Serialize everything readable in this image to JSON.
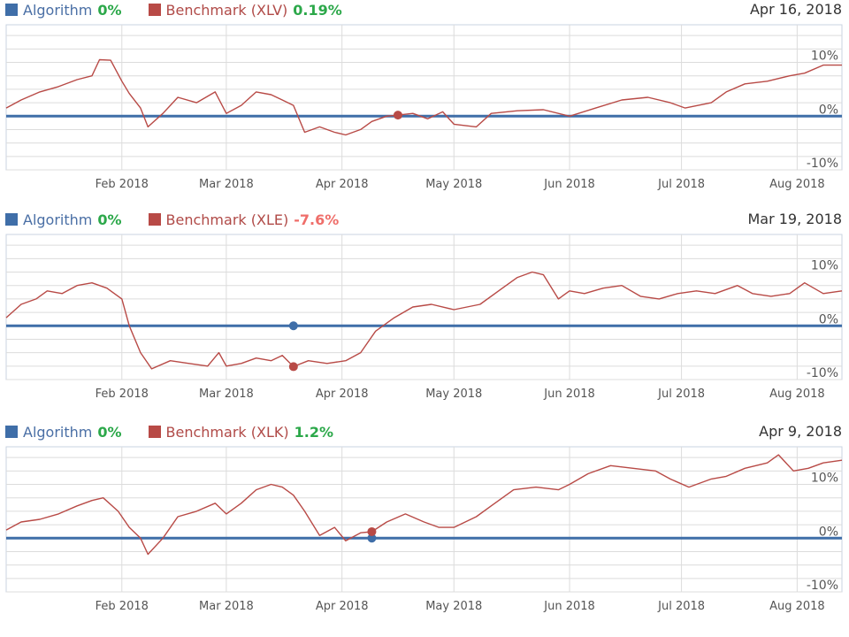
{
  "colors": {
    "algorithm": "#3f6ea8",
    "benchmark": "#b84a46",
    "positive": "#2ca84a",
    "negative": "#ef6e6a",
    "grid": "#dcdcdc",
    "axis_text": "#555555"
  },
  "panels": [
    {
      "algorithm_label": "Algorithm",
      "algorithm_pct": "0%",
      "algorithm_pct_sign": "positive",
      "benchmark_label": "Benchmark (XLV)",
      "benchmark_pct": "0.19%",
      "benchmark_pct_sign": "positive",
      "date": "Apr 16, 2018"
    },
    {
      "algorithm_label": "Algorithm",
      "algorithm_pct": "0%",
      "algorithm_pct_sign": "positive",
      "benchmark_label": "Benchmark (XLE)",
      "benchmark_pct": "-7.6%",
      "benchmark_pct_sign": "negative",
      "date": "Mar 19, 2018"
    },
    {
      "algorithm_label": "Algorithm",
      "algorithm_pct": "0%",
      "algorithm_pct_sign": "positive",
      "benchmark_label": "Benchmark (XLK)",
      "benchmark_pct": "1.2%",
      "benchmark_pct_sign": "positive",
      "date": "Apr 9, 2018"
    }
  ],
  "chart_data": [
    {
      "type": "line",
      "x_range": [
        "2018-01-01",
        "2018-08-13"
      ],
      "ylim": [
        -10,
        17
      ],
      "x_ticks": [
        {
          "date": "2018-02-01",
          "label": "Feb 2018"
        },
        {
          "date": "2018-03-01",
          "label": "Mar 2018"
        },
        {
          "date": "2018-04-01",
          "label": "Apr 2018"
        },
        {
          "date": "2018-05-01",
          "label": "May 2018"
        },
        {
          "date": "2018-06-01",
          "label": "Jun 2018"
        },
        {
          "date": "2018-07-01",
          "label": "Jul 2018"
        },
        {
          "date": "2018-08-01",
          "label": "Aug 2018"
        }
      ],
      "y_ticks": [
        {
          "value": 10,
          "label": "10%"
        },
        {
          "value": 0,
          "label": "0%"
        },
        {
          "value": -10,
          "label": "-10%"
        }
      ],
      "series": [
        {
          "name": "Algorithm",
          "values": [
            [
              "2018-01-01",
              0
            ],
            [
              "2018-08-13",
              0
            ]
          ]
        },
        {
          "name": "Benchmark (XLV)",
          "values": [
            [
              "2018-01-01",
              1.5
            ],
            [
              "2018-01-05",
              3
            ],
            [
              "2018-01-10",
              4.5
            ],
            [
              "2018-01-15",
              5.5
            ],
            [
              "2018-01-20",
              6.8
            ],
            [
              "2018-01-24",
              7.5
            ],
            [
              "2018-01-26",
              10.5
            ],
            [
              "2018-01-29",
              10.4
            ],
            [
              "2018-02-01",
              6.5
            ],
            [
              "2018-02-03",
              4.2
            ],
            [
              "2018-02-06",
              1.5
            ],
            [
              "2018-02-08",
              -2
            ],
            [
              "2018-02-12",
              0.5
            ],
            [
              "2018-02-16",
              3.5
            ],
            [
              "2018-02-21",
              2.5
            ],
            [
              "2018-02-26",
              4.5
            ],
            [
              "2018-03-01",
              0.5
            ],
            [
              "2018-03-05",
              2
            ],
            [
              "2018-03-09",
              4.5
            ],
            [
              "2018-03-13",
              4
            ],
            [
              "2018-03-16",
              3
            ],
            [
              "2018-03-19",
              2
            ],
            [
              "2018-03-22",
              -3
            ],
            [
              "2018-03-26",
              -2
            ],
            [
              "2018-03-30",
              -3
            ],
            [
              "2018-04-02",
              -3.5
            ],
            [
              "2018-04-06",
              -2.5
            ],
            [
              "2018-04-09",
              -1
            ],
            [
              "2018-04-13",
              0
            ],
            [
              "2018-04-16",
              0.19
            ],
            [
              "2018-04-20",
              0.5
            ],
            [
              "2018-04-24",
              -0.5
            ],
            [
              "2018-04-28",
              0.8
            ],
            [
              "2018-05-01",
              -1.5
            ],
            [
              "2018-05-07",
              -2
            ],
            [
              "2018-05-11",
              0.5
            ],
            [
              "2018-05-18",
              1
            ],
            [
              "2018-05-25",
              1.2
            ],
            [
              "2018-06-01",
              0
            ],
            [
              "2018-06-08",
              1.5
            ],
            [
              "2018-06-15",
              3
            ],
            [
              "2018-06-22",
              3.5
            ],
            [
              "2018-06-28",
              2.5
            ],
            [
              "2018-07-02",
              1.5
            ],
            [
              "2018-07-09",
              2.5
            ],
            [
              "2018-07-13",
              4.5
            ],
            [
              "2018-07-18",
              6
            ],
            [
              "2018-07-24",
              6.5
            ],
            [
              "2018-07-30",
              7.5
            ],
            [
              "2018-08-03",
              8
            ],
            [
              "2018-08-08",
              9.5
            ],
            [
              "2018-08-13",
              9.5
            ]
          ]
        }
      ],
      "markers": [
        {
          "series": "Benchmark (XLV)",
          "date": "2018-04-16",
          "value": 0.19
        }
      ]
    },
    {
      "type": "line",
      "x_range": [
        "2018-01-01",
        "2018-08-13"
      ],
      "ylim": [
        -10,
        17
      ],
      "x_ticks": [
        {
          "date": "2018-02-01",
          "label": "Feb 2018"
        },
        {
          "date": "2018-03-01",
          "label": "Mar 2018"
        },
        {
          "date": "2018-04-01",
          "label": "Apr 2018"
        },
        {
          "date": "2018-05-01",
          "label": "May 2018"
        },
        {
          "date": "2018-06-01",
          "label": "Jun 2018"
        },
        {
          "date": "2018-07-01",
          "label": "Jul 2018"
        },
        {
          "date": "2018-08-01",
          "label": "Aug 2018"
        }
      ],
      "y_ticks": [
        {
          "value": 10,
          "label": "10%"
        },
        {
          "value": 0,
          "label": "0%"
        },
        {
          "value": -10,
          "label": "-10%"
        }
      ],
      "series": [
        {
          "name": "Algorithm",
          "values": [
            [
              "2018-01-01",
              0
            ],
            [
              "2018-08-13",
              0
            ]
          ]
        },
        {
          "name": "Benchmark (XLE)",
          "values": [
            [
              "2018-01-01",
              1.5
            ],
            [
              "2018-01-05",
              4
            ],
            [
              "2018-01-09",
              5
            ],
            [
              "2018-01-12",
              6.5
            ],
            [
              "2018-01-16",
              6
            ],
            [
              "2018-01-20",
              7.5
            ],
            [
              "2018-01-24",
              8
            ],
            [
              "2018-01-28",
              7
            ],
            [
              "2018-02-01",
              5
            ],
            [
              "2018-02-03",
              0
            ],
            [
              "2018-02-06",
              -5
            ],
            [
              "2018-02-09",
              -8
            ],
            [
              "2018-02-14",
              -6.5
            ],
            [
              "2018-02-19",
              -7
            ],
            [
              "2018-02-24",
              -7.5
            ],
            [
              "2018-02-27",
              -5
            ],
            [
              "2018-03-01",
              -7.5
            ],
            [
              "2018-03-05",
              -7
            ],
            [
              "2018-03-09",
              -6
            ],
            [
              "2018-03-13",
              -6.5
            ],
            [
              "2018-03-16",
              -5.5
            ],
            [
              "2018-03-19",
              -7.6
            ],
            [
              "2018-03-23",
              -6.5
            ],
            [
              "2018-03-28",
              -7
            ],
            [
              "2018-04-02",
              -6.5
            ],
            [
              "2018-04-06",
              -5
            ],
            [
              "2018-04-10",
              -1
            ],
            [
              "2018-04-15",
              1.5
            ],
            [
              "2018-04-20",
              3.5
            ],
            [
              "2018-04-25",
              4
            ],
            [
              "2018-05-01",
              3
            ],
            [
              "2018-05-08",
              4
            ],
            [
              "2018-05-14",
              7
            ],
            [
              "2018-05-18",
              9
            ],
            [
              "2018-05-22",
              10
            ],
            [
              "2018-05-25",
              9.5
            ],
            [
              "2018-05-29",
              5
            ],
            [
              "2018-06-01",
              6.5
            ],
            [
              "2018-06-05",
              6
            ],
            [
              "2018-06-10",
              7
            ],
            [
              "2018-06-15",
              7.5
            ],
            [
              "2018-06-20",
              5.5
            ],
            [
              "2018-06-25",
              5
            ],
            [
              "2018-06-30",
              6
            ],
            [
              "2018-07-05",
              6.5
            ],
            [
              "2018-07-10",
              6
            ],
            [
              "2018-07-16",
              7.5
            ],
            [
              "2018-07-20",
              6
            ],
            [
              "2018-07-25",
              5.5
            ],
            [
              "2018-07-30",
              6
            ],
            [
              "2018-08-03",
              8
            ],
            [
              "2018-08-08",
              6
            ],
            [
              "2018-08-13",
              6.5
            ]
          ]
        }
      ],
      "markers": [
        {
          "series": "Algorithm",
          "date": "2018-03-19",
          "value": 0
        },
        {
          "series": "Benchmark (XLE)",
          "date": "2018-03-19",
          "value": -7.6
        }
      ]
    },
    {
      "type": "line",
      "x_range": [
        "2018-01-01",
        "2018-08-13"
      ],
      "ylim": [
        -10,
        17
      ],
      "x_ticks": [
        {
          "date": "2018-02-01",
          "label": "Feb 2018"
        },
        {
          "date": "2018-03-01",
          "label": "Mar 2018"
        },
        {
          "date": "2018-04-01",
          "label": "Apr 2018"
        },
        {
          "date": "2018-05-01",
          "label": "May 2018"
        },
        {
          "date": "2018-06-01",
          "label": "Jun 2018"
        },
        {
          "date": "2018-07-01",
          "label": "Jul 2018"
        },
        {
          "date": "2018-08-01",
          "label": "Aug 2018"
        }
      ],
      "y_ticks": [
        {
          "value": 10,
          "label": "10%"
        },
        {
          "value": 0,
          "label": "0%"
        },
        {
          "value": -10,
          "label": "-10%"
        }
      ],
      "series": [
        {
          "name": "Algorithm",
          "values": [
            [
              "2018-01-01",
              0
            ],
            [
              "2018-08-13",
              0
            ]
          ]
        },
        {
          "name": "Benchmark (XLK)",
          "values": [
            [
              "2018-01-01",
              1.5
            ],
            [
              "2018-01-05",
              3
            ],
            [
              "2018-01-10",
              3.5
            ],
            [
              "2018-01-15",
              4.5
            ],
            [
              "2018-01-20",
              6
            ],
            [
              "2018-01-24",
              7
            ],
            [
              "2018-01-27",
              7.5
            ],
            [
              "2018-01-31",
              5
            ],
            [
              "2018-02-03",
              2
            ],
            [
              "2018-02-06",
              0
            ],
            [
              "2018-02-08",
              -3
            ],
            [
              "2018-02-12",
              0
            ],
            [
              "2018-02-16",
              4
            ],
            [
              "2018-02-21",
              5
            ],
            [
              "2018-02-26",
              6.5
            ],
            [
              "2018-03-01",
              4.5
            ],
            [
              "2018-03-05",
              6.5
            ],
            [
              "2018-03-09",
              9
            ],
            [
              "2018-03-13",
              10
            ],
            [
              "2018-03-16",
              9.5
            ],
            [
              "2018-03-19",
              8
            ],
            [
              "2018-03-22",
              5
            ],
            [
              "2018-03-26",
              0.5
            ],
            [
              "2018-03-30",
              2
            ],
            [
              "2018-04-02",
              -0.5
            ],
            [
              "2018-04-06",
              1
            ],
            [
              "2018-04-09",
              1.2
            ],
            [
              "2018-04-13",
              3
            ],
            [
              "2018-04-18",
              4.5
            ],
            [
              "2018-04-23",
              3
            ],
            [
              "2018-04-27",
              2
            ],
            [
              "2018-05-01",
              2
            ],
            [
              "2018-05-07",
              4
            ],
            [
              "2018-05-11",
              6
            ],
            [
              "2018-05-17",
              9
            ],
            [
              "2018-05-23",
              9.5
            ],
            [
              "2018-05-29",
              9
            ],
            [
              "2018-06-01",
              10
            ],
            [
              "2018-06-06",
              12
            ],
            [
              "2018-06-12",
              13.5
            ],
            [
              "2018-06-18",
              13
            ],
            [
              "2018-06-24",
              12.5
            ],
            [
              "2018-06-28",
              11
            ],
            [
              "2018-07-03",
              9.5
            ],
            [
              "2018-07-09",
              11
            ],
            [
              "2018-07-13",
              11.5
            ],
            [
              "2018-07-18",
              13
            ],
            [
              "2018-07-24",
              14
            ],
            [
              "2018-07-27",
              15.5
            ],
            [
              "2018-07-31",
              12.5
            ],
            [
              "2018-08-04",
              13
            ],
            [
              "2018-08-08",
              14
            ],
            [
              "2018-08-13",
              14.5
            ]
          ]
        }
      ],
      "markers": [
        {
          "series": "Algorithm",
          "date": "2018-04-09",
          "value": 0
        },
        {
          "series": "Benchmark (XLK)",
          "date": "2018-04-09",
          "value": 1.2
        }
      ]
    }
  ]
}
